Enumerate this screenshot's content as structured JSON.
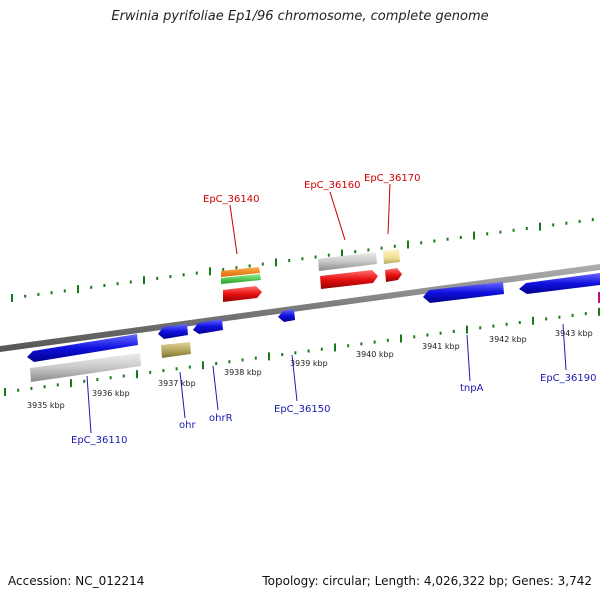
{
  "title": "Erwinia pyrifoliae Ep1/96 chromosome, complete genome",
  "footer": {
    "accession": "Accession: NC_012214",
    "summary": "Topology: circular; Length: 4,026,322 bp; Genes: 3,742"
  },
  "colors": {
    "forward_cds": "#1010e0",
    "reverse_cds": "#e01010",
    "tick_green": "#1a7a1a",
    "backbone": "#888888",
    "label_red": "#cc0000",
    "label_blue": "#1a1ab0"
  },
  "scale_labels": [
    "3935 kbp",
    "3936 kbp",
    "3937 kbp",
    "3938 kbp",
    "3939 kbp",
    "3940 kbp",
    "3941 kbp",
    "3942 kbp",
    "3943 kbp"
  ],
  "gene_labels": {
    "top": [
      "EpC_36140",
      "EpC_36160",
      "EpC_36170"
    ],
    "bottom": [
      "EpC_36110",
      "ohr",
      "ohrR",
      "EpC_36150",
      "tnpA",
      "EpC_36190"
    ]
  }
}
